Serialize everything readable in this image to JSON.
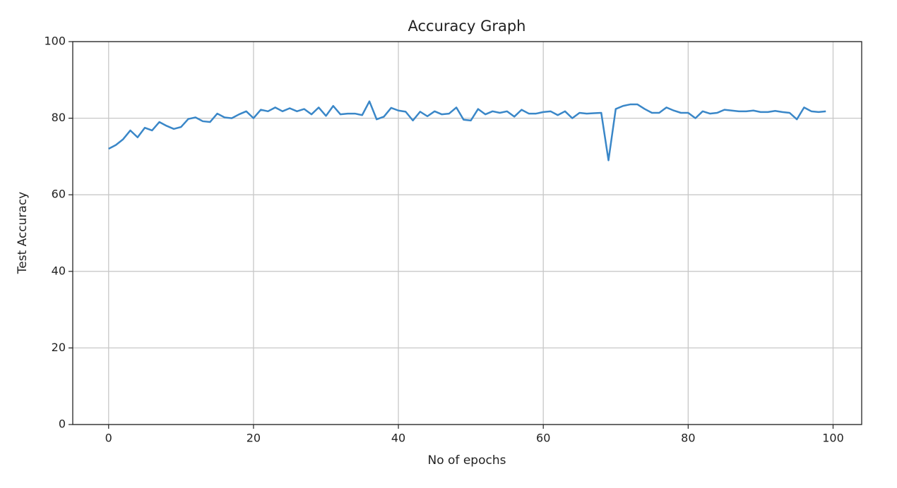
{
  "chart_data": {
    "type": "line",
    "title": "Accuracy Graph",
    "x_label": "No of epochs",
    "y_label": "Test Accuracy",
    "x": [
      0,
      1,
      2,
      3,
      4,
      5,
      6,
      7,
      8,
      9,
      10,
      11,
      12,
      13,
      14,
      15,
      16,
      17,
      18,
      19,
      20,
      21,
      22,
      23,
      24,
      25,
      26,
      27,
      28,
      29,
      30,
      31,
      32,
      33,
      34,
      35,
      36,
      37,
      38,
      39,
      40,
      41,
      42,
      43,
      44,
      45,
      46,
      47,
      48,
      49,
      50,
      51,
      52,
      53,
      54,
      55,
      56,
      57,
      58,
      59,
      60,
      61,
      62,
      63,
      64,
      65,
      66,
      67,
      68,
      69,
      70,
      71,
      72,
      73,
      74,
      75,
      76,
      77,
      78,
      79,
      80,
      81,
      82,
      83,
      84,
      85,
      86,
      87,
      88,
      89,
      90,
      91,
      92,
      93,
      94,
      95,
      96,
      97,
      98,
      99
    ],
    "values": [
      72,
      73,
      74.5,
      76.8,
      75,
      77.5,
      76.8,
      79,
      78,
      77.2,
      77.7,
      79.8,
      80.2,
      79.2,
      79,
      81.2,
      80.2,
      80,
      81,
      81.8,
      80,
      82.2,
      81.8,
      82.8,
      81.8,
      82.6,
      81.8,
      82.4,
      81,
      82.8,
      80.6,
      83.2,
      81,
      81.2,
      81.2,
      80.8,
      84.4,
      79.7,
      80.4,
      82.7,
      82,
      81.7,
      79.4,
      81.7,
      80.5,
      81.8,
      81,
      81.2,
      82.8,
      79.6,
      79.4,
      82.4,
      81,
      81.8,
      81.4,
      81.8,
      80.4,
      82.2,
      81.2,
      81.2,
      81.6,
      81.8,
      80.8,
      81.8,
      80,
      81.4,
      81.2,
      81.3,
      81.4,
      69,
      82.4,
      83.2,
      83.6,
      83.6,
      82.4,
      81.4,
      81.4,
      82.8,
      82,
      81.4,
      81.4,
      80,
      81.8,
      81.2,
      81.4,
      82.2,
      82,
      81.8,
      81.8,
      82,
      81.6,
      81.6,
      81.9,
      81.6,
      81.4,
      79.7,
      82.8,
      81.8,
      81.6,
      81.8
    ],
    "color": "#3a87c8",
    "xlim": [
      -4.95,
      103.95
    ],
    "xticks": [
      0,
      20,
      40,
      60,
      80,
      100
    ],
    "ylim": [
      0,
      100
    ],
    "yticks": [
      0,
      20,
      40,
      60,
      80,
      100
    ],
    "grid": true
  }
}
